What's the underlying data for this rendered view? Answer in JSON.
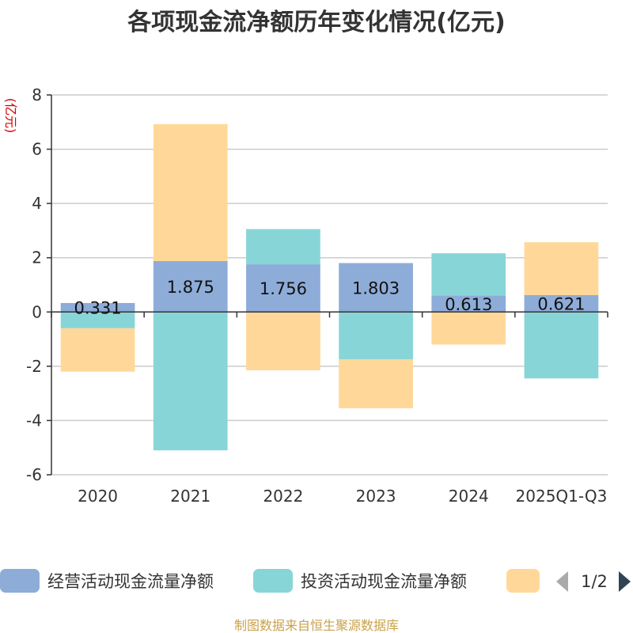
{
  "chart_data": {
    "type": "bar",
    "stacked": true,
    "title": "各项现金流净额历年变化情况(亿元)",
    "ylabel": "(亿元)",
    "xlabel": "",
    "ylim": [
      -6,
      8
    ],
    "yticks": [
      8,
      6,
      4,
      2,
      0,
      -2,
      -4,
      -6
    ],
    "ytick_labels": [
      "8",
      "6",
      "4",
      "2",
      "0",
      "-2",
      "-4",
      "-6"
    ],
    "grid": true,
    "categories": [
      "2020",
      "2021",
      "2022",
      "2023",
      "2024",
      "2025Q1-Q3"
    ],
    "series": [
      {
        "name": "经营活动现金流量净额",
        "color": "#8eacd8",
        "values": [
          0.331,
          1.875,
          1.756,
          1.803,
          0.613,
          0.621
        ],
        "labels": [
          "0.331",
          "1.875",
          "1.756",
          "1.803",
          "0.613",
          "0.621"
        ]
      },
      {
        "name": "投资活动现金流量净额",
        "color": "#88d5d8",
        "values": [
          -0.6,
          -5.1,
          1.3,
          -1.75,
          1.55,
          -2.45
        ]
      },
      {
        "name": "",
        "color": "#ffd899",
        "values": [
          -1.6,
          5.05,
          -2.15,
          -1.8,
          -1.2,
          1.95
        ]
      }
    ],
    "legend": {
      "items": [
        "经营活动现金流量净额",
        "投资活动现金流量净额",
        ""
      ],
      "pager": "1/2",
      "placement": "bottom"
    },
    "source": "制图数据来自恒生聚源数据库"
  }
}
